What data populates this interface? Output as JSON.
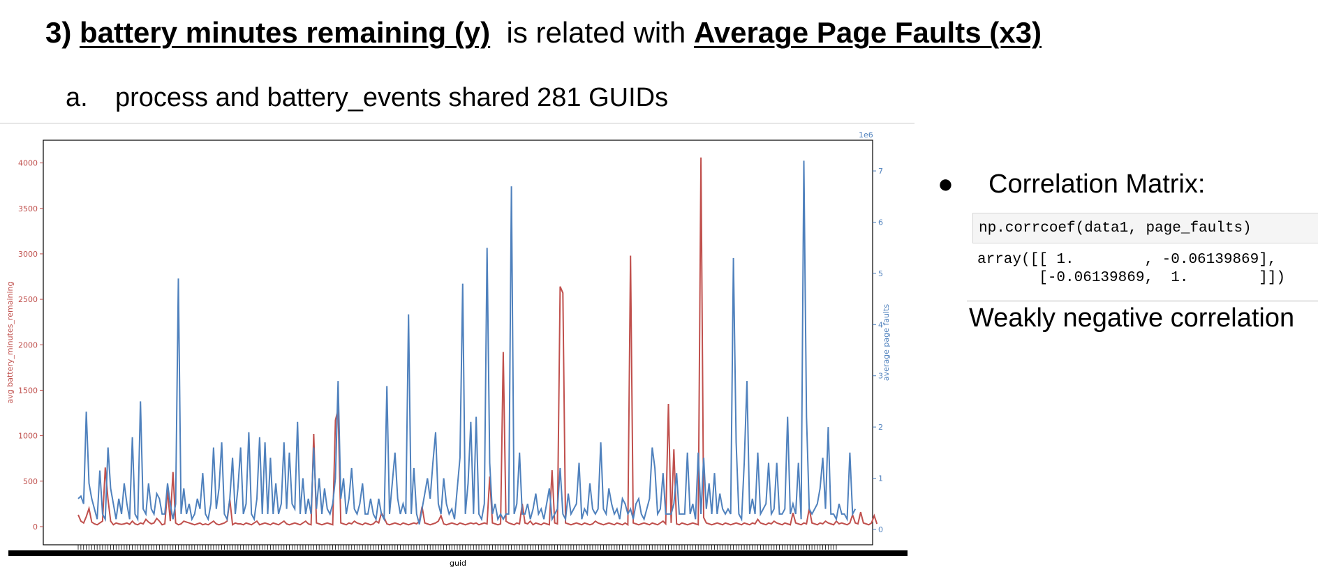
{
  "heading": {
    "number": "3)",
    "term1": "battery minutes remaining (y)",
    "connector": "is related with",
    "term2": "Average Page Faults (x3)"
  },
  "subpoint": {
    "marker": "a.",
    "text": "process and battery_events shared 281 GUIDs"
  },
  "right_panel": {
    "bullet_char": "●",
    "bullet_label": "Correlation Matrix:",
    "code_input": "np.corrcoef(data1, page_faults)",
    "code_output": "array([[ 1.        , -0.06139869],\n       [-0.06139869,  1.        ]])",
    "conclusion": "Weakly negative correlation"
  },
  "colors": {
    "battery_series": "#c0504d",
    "page_fault_series": "#4f81bd",
    "axis": "#000000"
  },
  "chart_data": {
    "type": "line",
    "n_points": 281,
    "xlabel": "guid",
    "ylabel_left": "avg battery_minutes_remaining",
    "ylabel_right": "average page faults",
    "right_axis_scale_label": "1e6",
    "ylim_left": [
      -200,
      4250
    ],
    "ylim_right": [
      -0.3,
      7.6
    ],
    "yticks_left": [
      "0",
      "500",
      "1000",
      "1500",
      "2000",
      "2500",
      "3000",
      "3500",
      "4000"
    ],
    "yticks_right": [
      "0",
      "1",
      "2",
      "3",
      "4",
      "5",
      "6",
      "7"
    ],
    "grid": false,
    "legend": "none",
    "series": [
      {
        "name": "avg battery_minutes_remaining",
        "axis": "left",
        "values": [
          130,
          60,
          40,
          110,
          200,
          50,
          30,
          20,
          40,
          60,
          650,
          300,
          60,
          20,
          40,
          30,
          25,
          30,
          40,
          25,
          60,
          30,
          20,
          40,
          30,
          80,
          50,
          30,
          40,
          90,
          60,
          20,
          30,
          400,
          60,
          600,
          40,
          20,
          30,
          60,
          50,
          40,
          30,
          20,
          30,
          40,
          20,
          30,
          20,
          40,
          60,
          30,
          20,
          30,
          40,
          60,
          300,
          20,
          40,
          30,
          30,
          20,
          40,
          30,
          20,
          40,
          60,
          20,
          30,
          40,
          30,
          20,
          40,
          30,
          20,
          40,
          60,
          30,
          20,
          30,
          40,
          30,
          20,
          40,
          60,
          30,
          20,
          1020,
          40,
          30,
          20,
          30,
          40,
          30,
          20,
          1170,
          1290,
          40,
          30,
          20,
          40,
          30,
          60,
          40,
          30,
          20,
          40,
          30,
          20,
          30,
          60,
          40,
          150,
          100,
          30,
          20,
          30,
          40,
          30,
          20,
          40,
          30,
          20,
          30,
          40,
          30,
          60,
          220,
          40,
          30,
          20,
          30,
          40,
          60,
          120,
          30,
          20,
          30,
          40,
          30,
          20,
          40,
          30,
          20,
          30,
          40,
          30,
          40,
          20,
          30,
          40,
          30,
          550,
          40,
          30,
          20,
          30,
          1920,
          60,
          40,
          30,
          20,
          40,
          30,
          250,
          40,
          30,
          60,
          20,
          40,
          30,
          20,
          40,
          30,
          20,
          620,
          40,
          30,
          2640,
          2570,
          40,
          30,
          20,
          30,
          40,
          30,
          20,
          40,
          30,
          20,
          30,
          60,
          40,
          30,
          20,
          30,
          40,
          30,
          20,
          40,
          30,
          20,
          40,
          20,
          2980,
          40,
          30,
          20,
          30,
          40,
          30,
          20,
          40,
          30,
          20,
          40,
          60,
          30,
          1350,
          40,
          850,
          30,
          20,
          40,
          30,
          20,
          30,
          40,
          30,
          20,
          4060,
          100,
          40,
          30,
          20,
          30,
          40,
          30,
          20,
          40,
          30,
          20,
          30,
          40,
          30,
          20,
          40,
          30,
          20,
          40,
          30,
          80,
          40,
          30,
          20,
          40,
          30,
          60,
          40,
          30,
          20,
          40,
          30,
          20,
          150,
          40,
          30,
          20,
          40,
          30,
          200,
          40,
          30,
          20,
          40,
          30,
          60,
          40,
          30,
          20,
          60,
          30,
          40,
          30,
          20,
          40,
          130,
          40,
          30,
          160,
          40,
          30,
          20,
          40,
          120,
          30
        ]
      },
      {
        "name": "average page faults",
        "axis": "right",
        "values": [
          0.6,
          0.65,
          0.5,
          2.3,
          0.9,
          0.6,
          0.4,
          0.2,
          1.15,
          0.3,
          0.2,
          1.6,
          0.8,
          0.5,
          0.2,
          0.6,
          0.3,
          0.9,
          0.5,
          0.2,
          1.8,
          0.3,
          0.2,
          2.5,
          0.4,
          0.3,
          0.9,
          0.4,
          0.3,
          0.7,
          0.6,
          0.3,
          0.3,
          0.9,
          0.5,
          0.2,
          0.5,
          4.9,
          0.3,
          0.8,
          0.3,
          0.5,
          0.2,
          0.3,
          0.6,
          0.4,
          1.1,
          0.3,
          0.2,
          0.5,
          1.6,
          0.4,
          0.8,
          1.7,
          0.3,
          0.2,
          0.6,
          1.4,
          0.3,
          0.8,
          1.6,
          0.3,
          0.5,
          1.9,
          0.3,
          0.2,
          0.6,
          1.8,
          0.3,
          1.7,
          0.3,
          1.4,
          0.3,
          0.9,
          0.3,
          0.5,
          1.7,
          0.4,
          1.5,
          0.5,
          0.4,
          2.1,
          0.3,
          1.0,
          0.3,
          0.6,
          0.3,
          1.6,
          0.4,
          1.0,
          0.3,
          0.8,
          0.4,
          0.3,
          0.5,
          1.0,
          2.9,
          0.6,
          1.0,
          0.3,
          0.6,
          1.2,
          0.4,
          0.3,
          0.5,
          0.9,
          0.3,
          0.3,
          0.6,
          0.3,
          0.2,
          0.6,
          0.3,
          0.2,
          2.8,
          0.3,
          0.9,
          1.5,
          0.6,
          0.3,
          0.5,
          0.3,
          4.2,
          0.3,
          1.2,
          0.3,
          0.1,
          0.4,
          0.7,
          1.0,
          0.6,
          1.3,
          1.9,
          0.5,
          0.3,
          1.0,
          0.5,
          0.3,
          0.4,
          0.2,
          0.8,
          1.4,
          4.8,
          0.3,
          0.9,
          2.1,
          0.3,
          2.2,
          0.3,
          0.2,
          0.5,
          5.5,
          1.3,
          0.3,
          0.5,
          0.2,
          0.3,
          0.2,
          0.3,
          0.3,
          6.7,
          0.3,
          0.5,
          1.5,
          0.3,
          0.3,
          0.5,
          0.2,
          0.4,
          0.7,
          0.3,
          0.4,
          0.2,
          0.5,
          0.8,
          0.2,
          0.3,
          0.4,
          1.2,
          0.3,
          0.2,
          0.7,
          0.3,
          0.4,
          0.5,
          1.3,
          0.2,
          0.4,
          0.3,
          0.9,
          0.4,
          0.3,
          0.4,
          1.7,
          0.4,
          0.3,
          0.8,
          0.5,
          0.3,
          0.4,
          0.2,
          0.6,
          0.5,
          0.3,
          0.4,
          0.2,
          0.5,
          0.6,
          0.3,
          0.2,
          0.4,
          0.6,
          1.6,
          1.2,
          0.3,
          0.4,
          1.1,
          0.3,
          0.3,
          0.3,
          0.5,
          1.1,
          0.3,
          0.3,
          0.3,
          1.5,
          0.3,
          0.5,
          0.2,
          1.5,
          0.3,
          1.4,
          0.4,
          0.9,
          0.3,
          1.1,
          0.3,
          0.7,
          0.4,
          0.3,
          0.4,
          0.3,
          5.3,
          1.7,
          0.3,
          0.2,
          1.3,
          2.9,
          0.3,
          0.6,
          0.3,
          1.5,
          0.3,
          0.4,
          0.5,
          1.3,
          0.3,
          0.4,
          1.3,
          0.3,
          0.3,
          0.4,
          2.2,
          0.3,
          0.5,
          0.3,
          1.3,
          0.2,
          7.2,
          2.2,
          0.4,
          0.3,
          0.4,
          0.5,
          0.8,
          1.4,
          0.4,
          2.0,
          0.3,
          0.3,
          0.2,
          0.5,
          0.3,
          0.3,
          0.2,
          1.5,
          0.3,
          0.4
        ]
      }
    ]
  }
}
